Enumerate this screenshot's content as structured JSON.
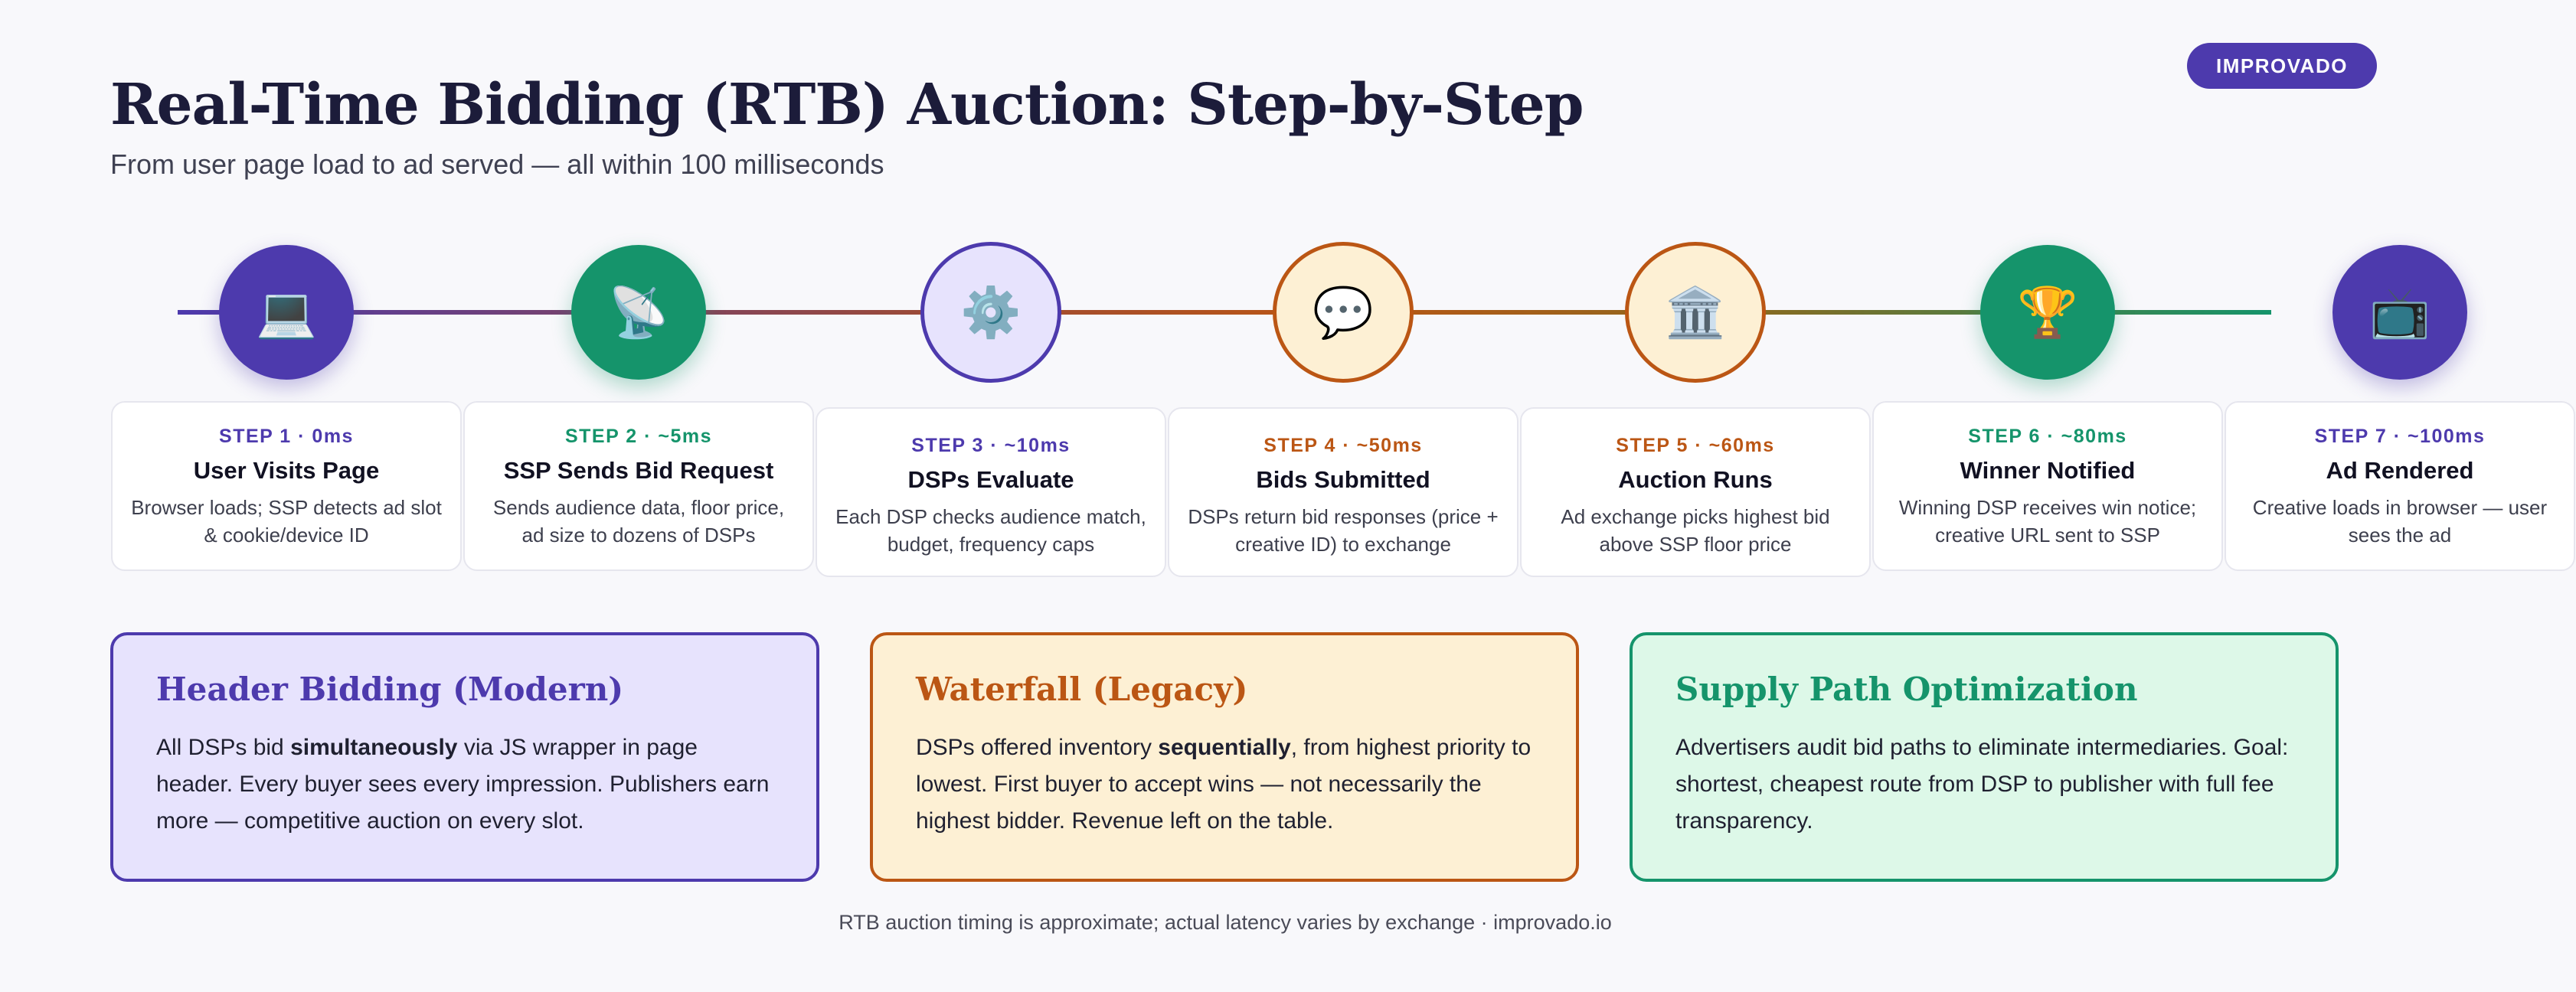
{
  "brand": {
    "label": "IMPROVADO"
  },
  "header": {
    "title": "Real-Time Bidding (RTB) Auction: Step-by-Step",
    "subtitle": "From user page load to ad served — all within 100 milliseconds"
  },
  "colors": {
    "purple": "#4d3aad",
    "green": "#15946b",
    "orange": "#bb5614",
    "purple_light": "#e7e3fd",
    "orange_light": "#fdf0d4",
    "green_light": "#ddf8e8"
  },
  "steps": [
    {
      "label": "STEP 1 · 0ms",
      "title": "User Visits Page",
      "desc": "Browser loads; SSP detects ad slot & cookie/device ID",
      "icon": "💻",
      "icon_name": "desktop-computer-icon",
      "style": "filled-purple",
      "accent": "#4d3aad"
    },
    {
      "label": "STEP 2 · ~5ms",
      "title": "SSP Sends Bid Request",
      "desc": "Sends audience data, floor price, ad size to dozens of DSPs",
      "icon": "📡",
      "icon_name": "satellite-dish-icon",
      "style": "filled-green",
      "accent": "#15946b"
    },
    {
      "label": "STEP 3 · ~10ms",
      "title": "DSPs Evaluate",
      "desc": "Each DSP checks audience match, budget, frequency caps",
      "icon": "⚙️",
      "icon_name": "gear-icon",
      "style": "outline-purple",
      "accent": "#4d3aad"
    },
    {
      "label": "STEP 4 · ~50ms",
      "title": "Bids Submitted",
      "desc": "DSPs return bid responses (price + creative ID) to exchange",
      "icon": "💬",
      "icon_name": "speech-bubble-icon",
      "style": "outline-orange",
      "accent": "#bb5614"
    },
    {
      "label": "STEP 5 · ~60ms",
      "title": "Auction Runs",
      "desc": "Ad exchange picks highest bid above SSP floor price",
      "icon": "🏛️",
      "icon_name": "classical-building-icon",
      "style": "outline-orange",
      "accent": "#bb5614"
    },
    {
      "label": "STEP 6 · ~80ms",
      "title": "Winner Notified",
      "desc": "Winning DSP receives win notice; creative URL sent to SSP",
      "icon": "🏆",
      "icon_name": "trophy-icon",
      "style": "filled-green",
      "accent": "#15946b"
    },
    {
      "label": "STEP 7 · ~100ms",
      "title": "Ad Rendered",
      "desc": "Creative loads in browser — user sees the ad",
      "icon": "📺",
      "icon_name": "television-icon",
      "style": "filled-purple",
      "accent": "#4d3aad"
    }
  ],
  "boxes": [
    {
      "title": "Header Bidding (Modern)",
      "body_before": "All DSPs bid ",
      "body_bold": "simultaneously",
      "body_after": " via JS wrapper in page header. Every buyer sees every impression. Publishers earn more — competitive auction on every slot.",
      "accent": "#4d3aad",
      "bg": "#e7e3fd"
    },
    {
      "title": "Waterfall (Legacy)",
      "body_before": "DSPs offered inventory ",
      "body_bold": "sequentially",
      "body_after": ", from highest priority to lowest. First buyer to accept wins — not necessarily the highest bidder. Revenue left on the table.",
      "accent": "#bb5614",
      "bg": "#fdf0d4"
    },
    {
      "title": "Supply Path Optimization",
      "body_before": "Advertisers audit bid paths to eliminate intermediaries. Goal: shortest, cheapest route from DSP to publisher with full fee transparency.",
      "body_bold": "",
      "body_after": "",
      "accent": "#15946b",
      "bg": "#ddf8e8"
    }
  ],
  "footer": {
    "note": "RTB auction timing is approximate; actual latency varies by exchange · improvado.io"
  }
}
